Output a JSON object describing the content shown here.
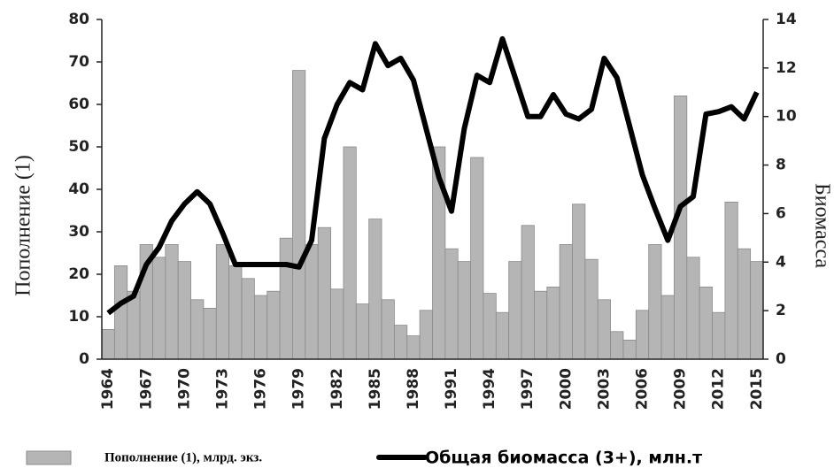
{
  "chart_data": {
    "type": "bar",
    "categories": [
      "1964",
      null,
      null,
      "1967",
      null,
      null,
      "1970",
      null,
      null,
      "1973",
      null,
      null,
      "1976",
      null,
      null,
      "1979",
      null,
      null,
      "1982",
      null,
      null,
      "1985",
      null,
      null,
      "1988",
      null,
      null,
      "1991",
      null,
      null,
      "1994",
      null,
      null,
      "1997",
      null,
      null,
      "2000",
      null,
      null,
      "2003",
      null,
      null,
      "2006",
      null,
      null,
      "2009",
      null,
      null,
      "2012",
      null,
      null,
      "2015"
    ],
    "series": [
      {
        "name": "Пополнение (1), млрд. экз.",
        "type": "bar",
        "color": "#b5b5b5",
        "values": [
          7,
          22,
          16,
          27,
          24,
          27,
          23,
          14,
          12,
          27,
          22,
          19,
          15,
          16,
          28.5,
          68,
          27,
          31,
          16.5,
          50,
          13,
          33,
          14,
          8,
          5.5,
          11.5,
          50,
          26,
          23,
          47.5,
          15.5,
          11,
          23,
          31.5,
          16,
          17,
          27,
          36.5,
          23.5,
          14,
          6.5,
          4.5,
          11.5,
          27,
          15,
          62,
          24,
          17,
          11,
          37,
          26,
          23
        ]
      },
      {
        "name": "Общая биомасса (3+), млн.т",
        "type": "line",
        "axis": "y2",
        "color": "#000000",
        "values": [
          1.9,
          2.3,
          2.6,
          3.9,
          4.6,
          5.7,
          6.4,
          6.9,
          6.4,
          5.2,
          3.9,
          3.9,
          3.9,
          3.9,
          3.9,
          3.8,
          4.9,
          9.1,
          10.5,
          11.4,
          11.1,
          13.0,
          12.1,
          12.4,
          11.5,
          9.5,
          7.5,
          6.1,
          9.5,
          11.7,
          11.4,
          13.2,
          11.6,
          10.0,
          10.0,
          10.9,
          10.1,
          9.9,
          10.3,
          12.4,
          11.6,
          9.6,
          7.6,
          6.2,
          4.9,
          6.3,
          6.7,
          10.1,
          10.2,
          10.4,
          9.9,
          11.0
        ]
      }
    ],
    "y_label": "Пополнение (1)",
    "y2_label": "Биомасса",
    "ylim": [
      0,
      80
    ],
    "yticks": [
      0,
      10,
      20,
      30,
      40,
      50,
      60,
      70,
      80
    ],
    "y2lim": [
      0,
      14
    ],
    "y2ticks": [
      0,
      2,
      4,
      6,
      8,
      10,
      12,
      14
    ],
    "grid": false,
    "legend": "bottom"
  }
}
